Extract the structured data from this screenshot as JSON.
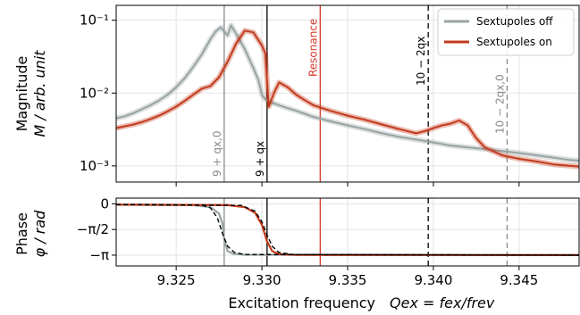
{
  "chart_data": [
    {
      "type": "line",
      "panel": "magnitude",
      "ylabel_line1": "Magnitude",
      "ylabel_line2": "M / arb. unit",
      "yscale": "log",
      "xlim": [
        9.3215,
        9.3485
      ],
      "ylim": [
        0.0006,
        0.16
      ],
      "grid": true,
      "y_ticks": [
        {
          "value": 0.1,
          "label": "10⁻¹"
        },
        {
          "value": 0.01,
          "label": "10⁻²"
        },
        {
          "value": 0.001,
          "label": "10⁻³"
        }
      ],
      "legend": {
        "placement": "top-right",
        "entries": [
          {
            "label": "Sextupoles off",
            "color": "#98a3a3"
          },
          {
            "label": "Sextupoles on",
            "color": "#c23b1e"
          }
        ]
      },
      "vertical_markers": [
        {
          "x": 9.3278,
          "label": "9 + qx,0",
          "color": "#8a8a8a",
          "style": "solid"
        },
        {
          "x": 9.3303,
          "label": "9 + qx",
          "color": "#000000",
          "style": "solid"
        },
        {
          "x": 9.3334,
          "label": "Resonance",
          "color": "#d43a2a",
          "style": "solid"
        },
        {
          "x": 9.3397,
          "label": "10 − 2qx",
          "color": "#000000",
          "style": "dashed"
        },
        {
          "x": 9.3443,
          "label": "10 − 2qx,0",
          "color": "#8a8a8a",
          "style": "dashed"
        }
      ],
      "series": [
        {
          "name": "Sextupoles off",
          "color": "#98a3a3",
          "x": [
            9.3215,
            9.322,
            9.3225,
            9.323,
            9.3235,
            9.324,
            9.3245,
            9.325,
            9.3255,
            9.326,
            9.3265,
            9.327,
            9.3273,
            9.3276,
            9.3278,
            9.328,
            9.3282,
            9.3285,
            9.329,
            9.3295,
            9.3298,
            9.33,
            9.3302,
            9.3305,
            9.331,
            9.3315,
            9.332,
            9.3325,
            9.333,
            9.334,
            9.335,
            9.336,
            9.337,
            9.338,
            9.339,
            9.34,
            9.341,
            9.342,
            9.343,
            9.344,
            9.345,
            9.346,
            9.347,
            9.348,
            9.3485
          ],
          "values": [
            0.0045,
            0.0048,
            0.0053,
            0.006,
            0.0068,
            0.0079,
            0.0095,
            0.012,
            0.016,
            0.023,
            0.034,
            0.055,
            0.07,
            0.08,
            0.07,
            0.062,
            0.085,
            0.065,
            0.04,
            0.022,
            0.015,
            0.0095,
            0.0082,
            0.0075,
            0.0068,
            0.0062,
            0.0057,
            0.0052,
            0.0047,
            0.0041,
            0.0036,
            0.0032,
            0.0028,
            0.0025,
            0.0023,
            0.0021,
            0.0019,
            0.0018,
            0.0017,
            0.0016,
            0.0015,
            0.0014,
            0.0013,
            0.0012,
            0.00118
          ]
        },
        {
          "name": "Sextupoles on",
          "color": "#c23b1e",
          "x": [
            9.3215,
            9.322,
            9.3225,
            9.323,
            9.3235,
            9.324,
            9.3245,
            9.325,
            9.3255,
            9.326,
            9.3265,
            9.327,
            9.3275,
            9.328,
            9.3285,
            9.329,
            9.3295,
            9.33,
            9.3302,
            9.3304,
            9.3307,
            9.331,
            9.3315,
            9.332,
            9.3325,
            9.333,
            9.334,
            9.335,
            9.336,
            9.337,
            9.338,
            9.339,
            9.3395,
            9.34,
            9.3405,
            9.341,
            9.3415,
            9.342,
            9.3425,
            9.343,
            9.344,
            9.345,
            9.346,
            9.347,
            9.348,
            9.3485
          ],
          "values": [
            0.0033,
            0.0035,
            0.0037,
            0.004,
            0.0044,
            0.0049,
            0.0056,
            0.0065,
            0.0078,
            0.0095,
            0.0115,
            0.0125,
            0.0165,
            0.027,
            0.048,
            0.072,
            0.068,
            0.045,
            0.035,
            0.0065,
            0.01,
            0.014,
            0.012,
            0.0095,
            0.008,
            0.0068,
            0.0057,
            0.0049,
            0.0043,
            0.0037,
            0.0032,
            0.0028,
            0.003,
            0.0033,
            0.0036,
            0.0038,
            0.0042,
            0.0036,
            0.0024,
            0.0018,
            0.0014,
            0.00125,
            0.00115,
            0.00105,
            0.001,
            0.00098
          ]
        }
      ]
    },
    {
      "type": "line",
      "panel": "phase",
      "ylabel_line1": "Phase",
      "ylabel_line2": "φ / rad",
      "xlabel": "Excitation frequency",
      "xlabel_formula": "Qex = fex/frev",
      "xlim": [
        9.3215,
        9.3485
      ],
      "ylim": [
        -3.8,
        0.35
      ],
      "grid": true,
      "y_ticks": [
        {
          "value": 0,
          "label": "0"
        },
        {
          "value": -1.5708,
          "label": "−π/2"
        },
        {
          "value": -3.1416,
          "label": "−π"
        }
      ],
      "x_ticks": [
        {
          "value": 9.325,
          "label": "9.325"
        },
        {
          "value": 9.33,
          "label": "9.330"
        },
        {
          "value": 9.335,
          "label": "9.335"
        },
        {
          "value": 9.34,
          "label": "9.340"
        },
        {
          "value": 9.345,
          "label": "9.345"
        }
      ],
      "series": [
        {
          "name": "Sextupoles off",
          "color": "#98a3a3",
          "x": [
            9.3215,
            9.326,
            9.327,
            9.3275,
            9.3277,
            9.3278,
            9.328,
            9.3283,
            9.329,
            9.3485
          ],
          "values": [
            -0.06,
            -0.08,
            -0.2,
            -0.6,
            -1.2,
            -2.2,
            -2.9,
            -3.05,
            -3.12,
            -3.14
          ]
        },
        {
          "name": "Sextupoles on",
          "color": "#c23b1e",
          "x": [
            9.3215,
            9.328,
            9.329,
            9.3296,
            9.33,
            9.3303,
            9.3306,
            9.331,
            9.332,
            9.3485
          ],
          "values": [
            -0.05,
            -0.08,
            -0.2,
            -0.55,
            -1.3,
            -2.3,
            -2.9,
            -3.08,
            -3.13,
            -3.14
          ]
        },
        {
          "name": "",
          "color": "#000000",
          "dashed": true,
          "x": [
            9.3215,
            9.3265,
            9.327,
            9.3274,
            9.3277,
            9.328,
            9.3284,
            9.329,
            9.3485
          ],
          "values": [
            -0.04,
            -0.08,
            -0.25,
            -0.85,
            -1.8,
            -2.6,
            -2.98,
            -3.1,
            -3.14
          ]
        },
        {
          "name": "",
          "color": "#000000",
          "dashed": true,
          "x": [
            9.3215,
            9.3288,
            9.3296,
            9.33,
            9.3303,
            9.3306,
            9.331,
            9.3318,
            9.3485
          ],
          "values": [
            -0.04,
            -0.1,
            -0.45,
            -1.1,
            -1.9,
            -2.6,
            -2.98,
            -3.1,
            -3.14
          ]
        }
      ]
    }
  ]
}
